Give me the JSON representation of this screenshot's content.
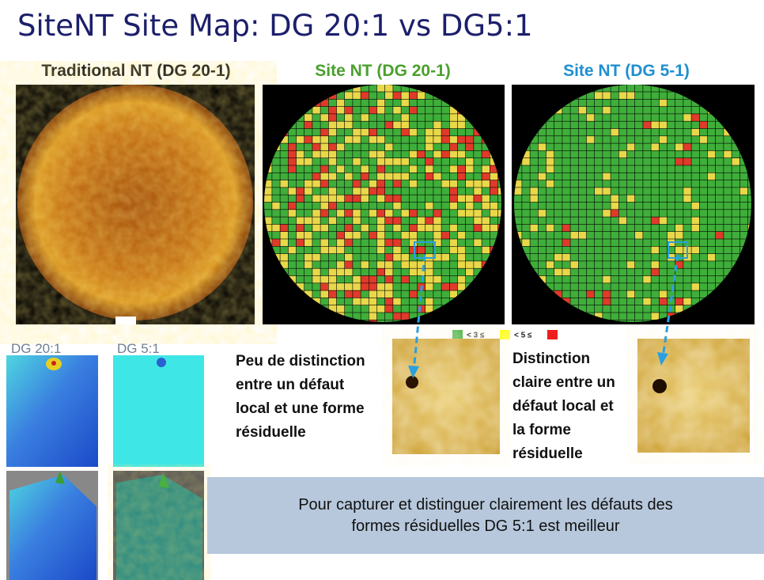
{
  "title": "SiteNT Site Map: DG 20:1 vs DG5:1",
  "panels": [
    {
      "label": "Traditional NT (DG 20-1)"
    },
    {
      "label": "Site NT (DG 20-1)"
    },
    {
      "label": "Site NT (DG 5-1)"
    }
  ],
  "legend": {
    "items": [
      "< 3 ≤",
      "< 5 ≤"
    ]
  },
  "thumbnails": [
    "DG 20:1",
    "DG 5:1"
  ],
  "notes": [
    {
      "lines": [
        "Peu de distinction",
        "entre un défaut",
        "local et une forme",
        "résiduelle"
      ]
    },
    {
      "lines": [
        "Distinction",
        "claire entre un",
        "défaut local et",
        "la forme",
        "résiduelle"
      ]
    }
  ],
  "conclusion": {
    "lines": [
      "Pour capturer et distinguer clairement les défauts des",
      "formes résiduelles DG 5:1 est meilleur"
    ]
  }
}
